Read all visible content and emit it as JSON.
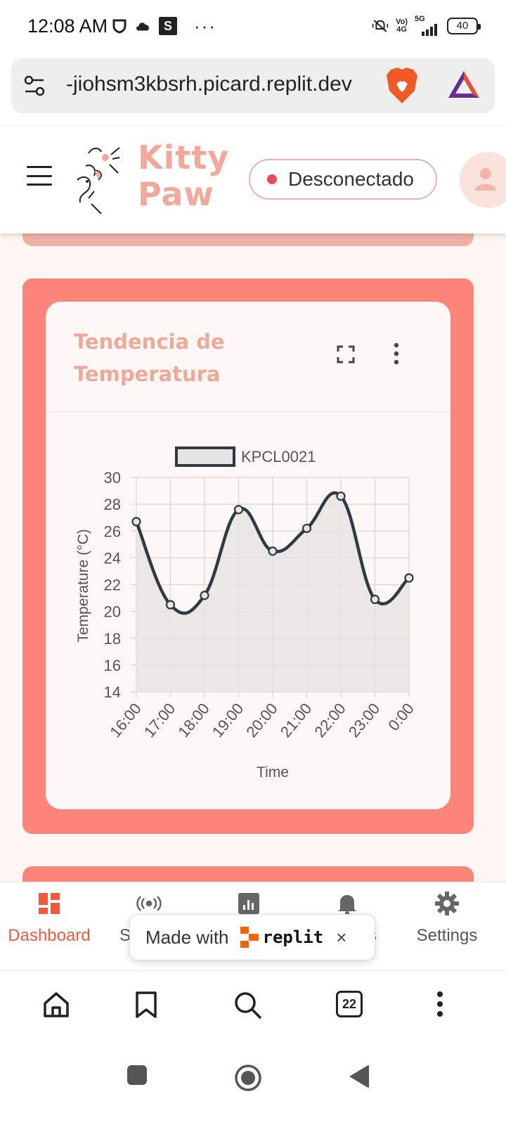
{
  "status_bar": {
    "time": "12:08 AM",
    "s_badge": "S",
    "more": "···",
    "network_top": "Vo)",
    "network_bottom": "4G",
    "signal_label": "5G",
    "battery": "40"
  },
  "browser": {
    "url": "-jiohsm3kbsrh.picard.replit.dev",
    "tab_count": "22"
  },
  "header": {
    "brand_line1": "Kitty",
    "brand_line2": "Paw",
    "connection_status": "Desconectado",
    "status_color": "#e84a5f"
  },
  "card": {
    "title_line1": "Tendencia de",
    "title_line2": "Temperatura"
  },
  "chart_data": {
    "type": "line",
    "xlabel": "Time",
    "ylabel": "Temperature (°C)",
    "ylim": [
      14,
      30
    ],
    "yticks": [
      "14",
      "16",
      "18",
      "20",
      "22",
      "24",
      "26",
      "28",
      "30"
    ],
    "categories": [
      "16:00",
      "17:00",
      "18:00",
      "19:00",
      "20:00",
      "21:00",
      "22:00",
      "23:00",
      "0:00"
    ],
    "series": [
      {
        "name": "KPCL0021",
        "values": [
          26.7,
          20.5,
          21.2,
          27.6,
          24.5,
          26.2,
          28.6,
          20.9,
          22.5
        ]
      }
    ],
    "legend": "top",
    "grid": true,
    "fill": "area",
    "line_color": "#2f3a42",
    "fill_color": "#e6e4e4"
  },
  "bottom_nav": {
    "items": [
      {
        "label": "Dashboard",
        "icon": "dashboard-icon"
      },
      {
        "label": "S",
        "icon": "sensors-icon"
      },
      {
        "label": "",
        "icon": "reports-icon"
      },
      {
        "label": "s",
        "icon": "bell-icon"
      },
      {
        "label": "Settings",
        "icon": "gear-icon"
      }
    ],
    "active_color": "#f05a3c"
  },
  "replit_toast": {
    "made_with": "Made with",
    "brand": "replit",
    "close": "×"
  },
  "colors": {
    "accent": "#fd8479",
    "brand_pink": "#f2a89c",
    "background": "#fdf6f3"
  }
}
